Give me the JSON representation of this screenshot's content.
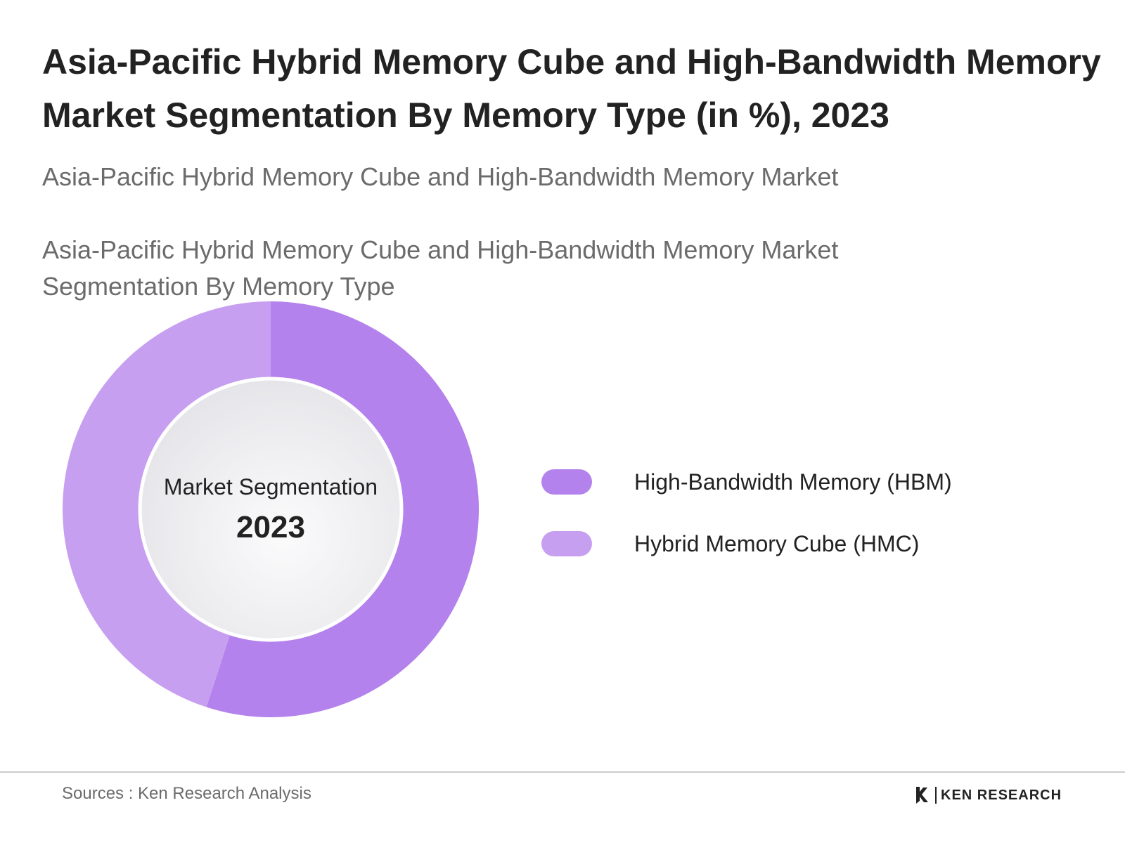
{
  "header": {
    "title": "Asia-Pacific Hybrid Memory Cube and High-Bandwidth Memory Market Segmentation By Memory Type (in %), 2023",
    "subtitle": "Asia-Pacific Hybrid Memory Cube and High-Bandwidth Memory Market",
    "subtitle2": "Asia-Pacific Hybrid Memory Cube and High-Bandwidth Memory Market Segmentation By Memory Type"
  },
  "center": {
    "label": "Market Segmentation",
    "year": "2023"
  },
  "chart_data": {
    "type": "pie",
    "donut": true,
    "categories": [
      "High-Bandwidth Memory (HBM)",
      "Hybrid Memory Cube (HMC)"
    ],
    "values": [
      55,
      45
    ],
    "colors": [
      "#b482ec",
      "#c79ff0"
    ],
    "legend_position": "right"
  },
  "footer": {
    "source": "Sources : Ken Research Analysis",
    "brand": "KEN RESEARCH"
  }
}
